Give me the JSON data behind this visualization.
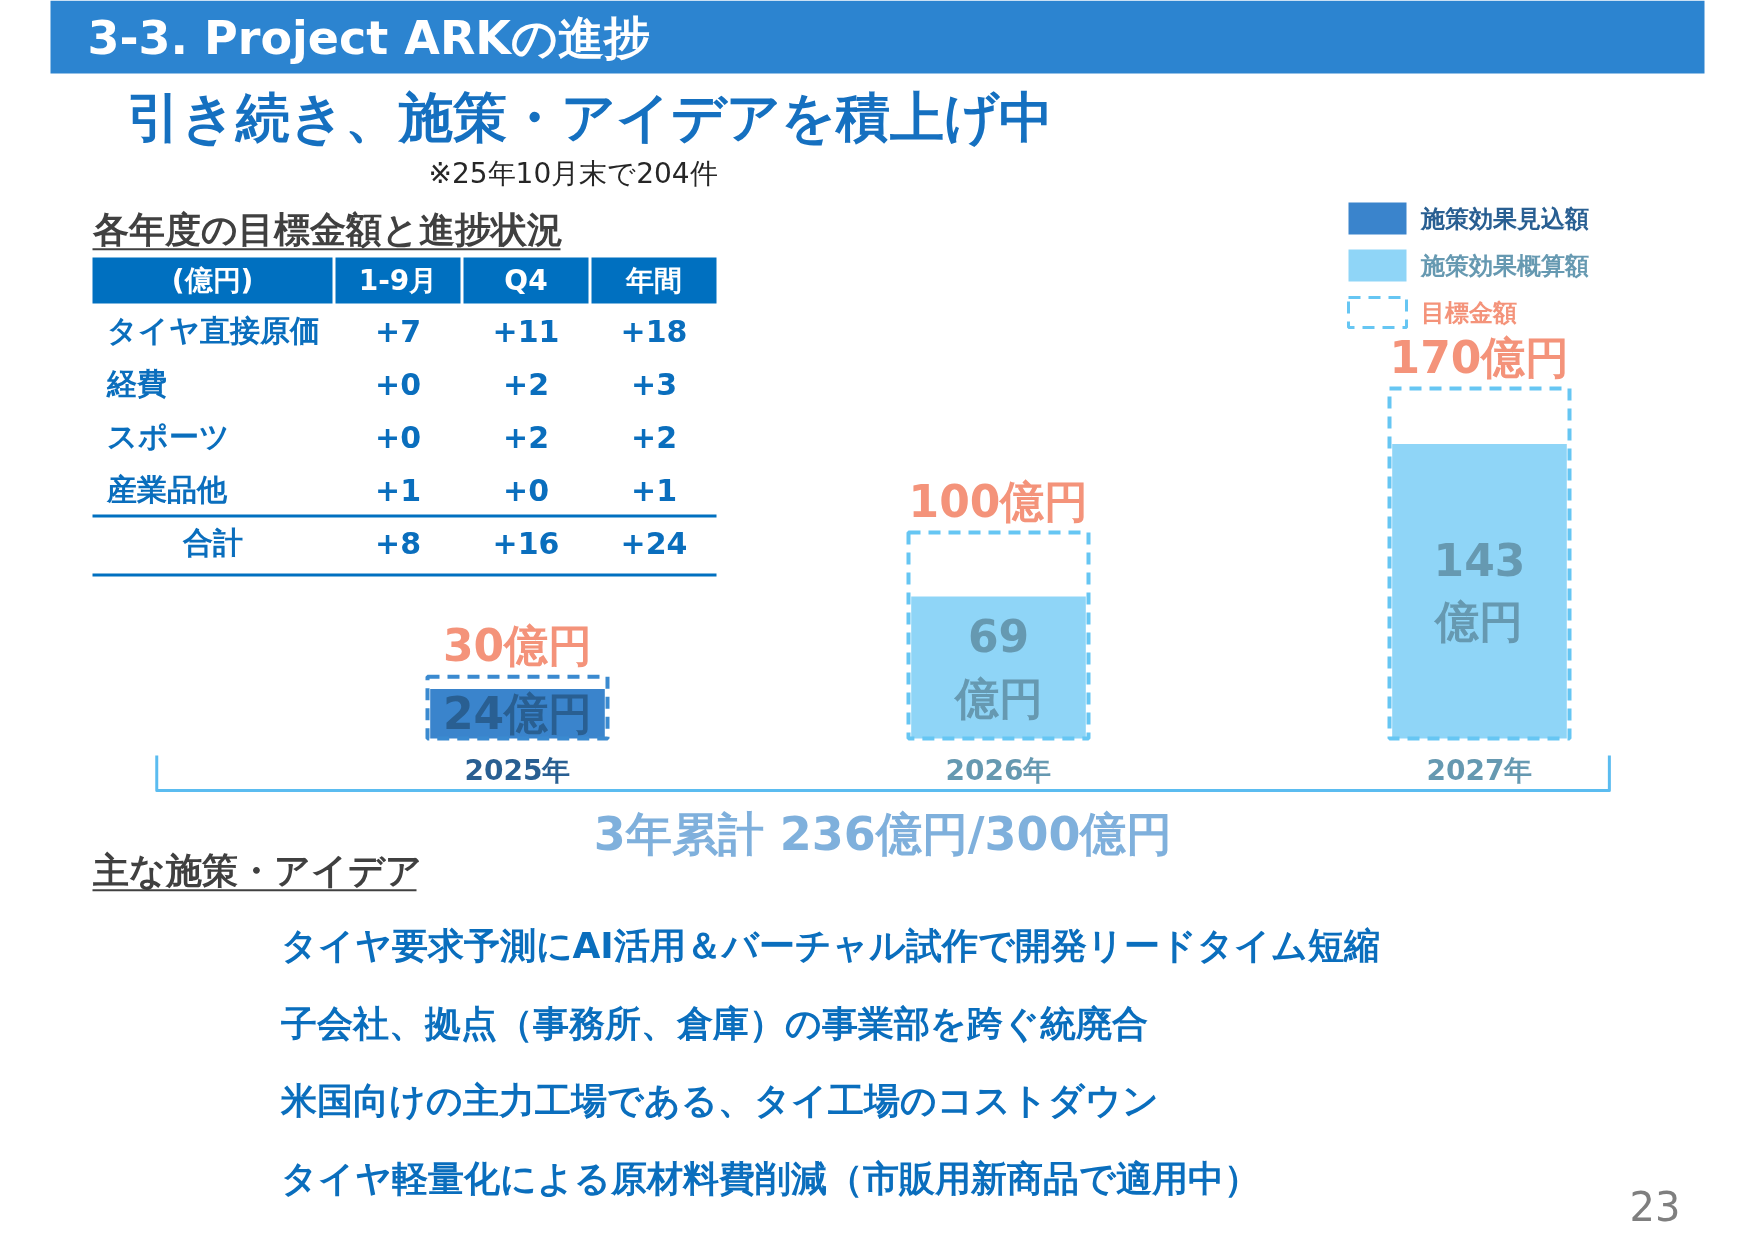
{
  "chart_data": [
    {
      "type": "other",
      "title": "3-3. Project ARKの進捗",
      "subtitle": "引き続き、施策・アイデアを積上げ中",
      "annotations": [
        "※25年10月末で204件",
        "23"
      ]
    },
    {
      "type": "other",
      "title": "各年度の目標金額と進捗状況",
      "ylabel": "(億円)",
      "categories": [
        "1-9月",
        "Q4",
        "年間"
      ],
      "y_categories": [
        "タイヤ直接原価",
        "経費",
        "スポーツ",
        "産業品他",
        "合計"
      ],
      "cell_labels": [
        [
          "+7",
          "+11",
          "+18"
        ],
        [
          "+0",
          "+2",
          "+3"
        ],
        [
          "+0",
          "+2",
          "+2"
        ],
        [
          "+1",
          "+0",
          "+1"
        ],
        [
          "+8",
          "+16",
          "+24"
        ]
      ]
    },
    {
      "type": "bar",
      "categories": [
        "2025年",
        "2026年",
        "2027年"
      ],
      "series": [
        {
          "name": "施策効果見込額",
          "color": "#3a84cc",
          "values": [
            24,
            null,
            null
          ],
          "value_labels": [
            "24億円",
            null,
            null
          ]
        },
        {
          "name": "施策効果概算額",
          "color": "#8fd5f7",
          "values": [
            null,
            69,
            143
          ],
          "value_labels": [
            null,
            "69\n億円",
            "143\n億円"
          ]
        },
        {
          "name": "目標金額",
          "colors": [
            "#3a8ad0",
            "#66c6f3",
            "#66c6f3"
          ],
          "line_style": "dashed",
          "values": [
            30,
            100,
            170
          ],
          "value_labels": [
            "30億円",
            "100億円",
            "170億円"
          ]
        }
      ],
      "legend": "top right",
      "annotations": [
        "3年累計 236億円/300億円"
      ]
    },
    {
      "type": "other",
      "title": "主な施策・アイデア",
      "annotations": [
        "タイヤ要求予測にAI活用＆バーチャル試作で開発リードタイム短縮",
        "子会社、拠点（事務所、倉庫）の事業部を跨ぐ統廃合",
        "米国向けの主力工場である、タイ工場のコストダウン",
        "タイヤ軽量化による原材料費削減（市販用新商品で適用中）"
      ]
    }
  ]
}
